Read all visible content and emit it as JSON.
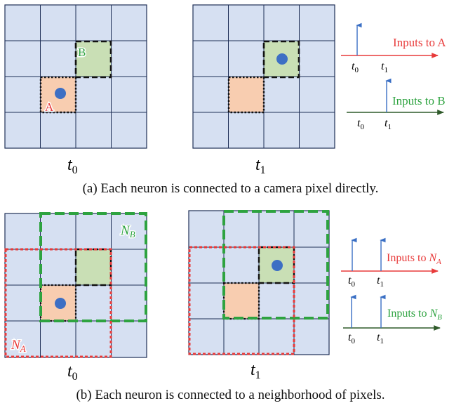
{
  "panel_a": {
    "caption": "(a) Each neuron is connected to a camera pixel directly.",
    "grid_time_labels": {
      "t0_base": "t",
      "t0_sub": "0",
      "t1_base": "t",
      "t1_sub": "1"
    },
    "label_a": "A",
    "label_b": "B",
    "axis_a_label": "Inputs to A",
    "axis_b_label": "Inputs to B",
    "axis_ticks": {
      "first_base": "t",
      "first_sub": "0",
      "second_base": "t",
      "second_sub": "1"
    }
  },
  "panel_b": {
    "caption": "(b) Each neuron is connected to a neighborhood of pixels.",
    "grid_time_labels": {
      "t0_base": "t",
      "t0_sub": "0",
      "t1_base": "t",
      "t1_sub": "1"
    },
    "label_na_base": "N",
    "label_na_sub": "A",
    "label_nb_base": "N",
    "label_nb_sub": "B",
    "axis_a_label": "Inputs to ",
    "axis_a_sym": "N",
    "axis_a_sub": "A",
    "axis_b_label": "Inputs to ",
    "axis_b_sym": "N",
    "axis_b_sub": "B",
    "axis_ticks": {
      "first_base": "t",
      "first_sub": "0",
      "second_base": "t",
      "second_sub": "1"
    }
  },
  "colors": {
    "grid_fill": "#d6e0f2",
    "grid_line": "#1f2f57",
    "neuron_a_fill": "#f8cdb0",
    "neuron_b_fill": "#c9dfb5",
    "pixel_dot": "#3d6fc4",
    "red": "#e83a3a",
    "green": "#2ea340",
    "dark_green": "#2f5a2a",
    "spike": "#3a6fc4"
  }
}
